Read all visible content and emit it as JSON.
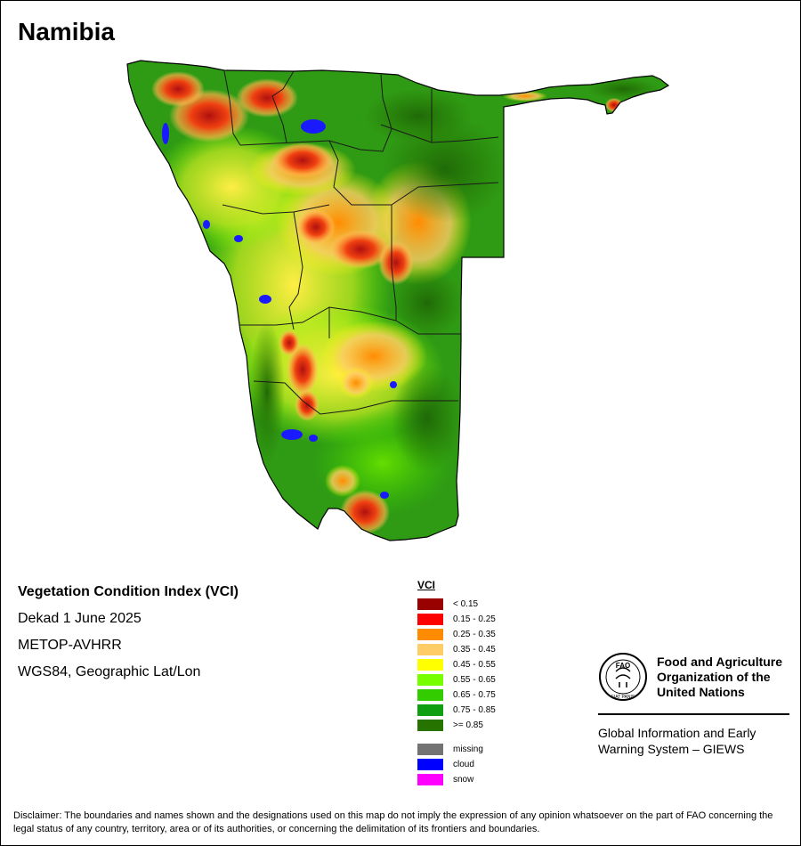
{
  "country": "Namibia",
  "info": {
    "product": "Vegetation Condition Index (VCI)",
    "period": "Dekad 1 June 2025",
    "sensor": "METOP-AVHRR",
    "projection": "WGS84, Geographic Lat/Lon"
  },
  "legend": {
    "title": "VCI",
    "classes": [
      {
        "label": "< 0.15",
        "color": "#990000"
      },
      {
        "label": "0.15 - 0.25",
        "color": "#ff0000"
      },
      {
        "label": "0.25 - 0.35",
        "color": "#ff8c00"
      },
      {
        "label": "0.35 - 0.45",
        "color": "#ffcc66"
      },
      {
        "label": "0.45 - 0.55",
        "color": "#ffff00"
      },
      {
        "label": "0.55 - 0.65",
        "color": "#77ff00"
      },
      {
        "label": "0.65 - 0.75",
        "color": "#33cc00"
      },
      {
        "label": "0.75 - 0.85",
        "color": "#109f10"
      },
      {
        "label": ">= 0.85",
        "color": "#267300"
      }
    ],
    "extra": [
      {
        "label": "missing",
        "color": "#737373"
      },
      {
        "label": "cloud",
        "color": "#0000ff"
      },
      {
        "label": "snow",
        "color": "#ff00ff"
      }
    ]
  },
  "organization": {
    "logo_letters": "FAO",
    "logo_motto": "FIAT PANIS",
    "name_line1": "Food and Agriculture",
    "name_line2": "Organization of the",
    "name_line3": "United Nations",
    "system_line1": "Global Information and Early",
    "system_line2": "Warning System – GIEWS"
  },
  "disclaimer": "Disclaimer: The boundaries and names shown and the designations used on this map do not imply the expression of any opinion whatsoever on the part of FAO concerning the legal status of any country, territory, area or of its authorities, or concerning the delimitation of its frontiers and boundaries."
}
